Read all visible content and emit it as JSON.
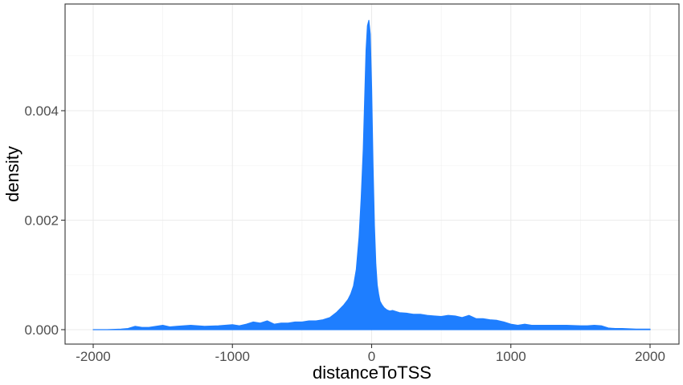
{
  "chart_data": {
    "type": "area",
    "xlabel": "distanceToTSS",
    "ylabel": "density",
    "xlim": [
      -2000,
      2000
    ],
    "ylim": [
      0,
      0.0057
    ],
    "x_ticks": [
      -2000,
      -1000,
      0,
      1000,
      2000
    ],
    "x_tick_labels": [
      "-2000",
      "-1000",
      "0",
      "1000",
      "2000"
    ],
    "y_ticks": [
      0,
      0.002,
      0.004
    ],
    "y_tick_labels": [
      "0.000",
      "0.002",
      "0.004"
    ],
    "grid": true,
    "fill_color": "#1e7eff",
    "series": [
      {
        "x": [
          -2000,
          -1900,
          -1800,
          -1750,
          -1700,
          -1650,
          -1600,
          -1500,
          -1450,
          -1400,
          -1300,
          -1200,
          -1100,
          -1000,
          -950,
          -900,
          -850,
          -800,
          -750,
          -700,
          -650,
          -600,
          -550,
          -500,
          -450,
          -400,
          -350,
          -300,
          -250,
          -200,
          -170,
          -150,
          -130,
          -110,
          -90,
          -75,
          -60,
          -50,
          -40,
          -30,
          -20,
          -10,
          0,
          10,
          20,
          30,
          40,
          50,
          60,
          75,
          90,
          110,
          130,
          150,
          175,
          200,
          250,
          300,
          350,
          400,
          450,
          500,
          550,
          600,
          650,
          700,
          750,
          800,
          850,
          900,
          950,
          1000,
          1050,
          1100,
          1150,
          1200,
          1300,
          1400,
          1500,
          1550,
          1600,
          1650,
          1700,
          1750,
          1800,
          1900,
          2000
        ],
        "y": [
          0.0,
          0.0,
          1e-05,
          2e-05,
          6e-05,
          4e-05,
          4e-05,
          8e-05,
          5e-05,
          6e-05,
          8e-05,
          6e-05,
          7e-05,
          9e-05,
          7e-05,
          0.0001,
          0.00014,
          0.00012,
          0.00016,
          0.0001,
          0.00012,
          0.00012,
          0.00014,
          0.00014,
          0.00016,
          0.00016,
          0.00018,
          0.00022,
          0.00032,
          0.00045,
          0.00055,
          0.00065,
          0.0008,
          0.0011,
          0.0017,
          0.0024,
          0.0033,
          0.0042,
          0.0051,
          0.00555,
          0.00565,
          0.0054,
          0.0044,
          0.003,
          0.0019,
          0.0012,
          0.00082,
          0.00065,
          0.00052,
          0.00045,
          0.0004,
          0.00036,
          0.00034,
          0.00035,
          0.00033,
          0.00031,
          0.0003,
          0.00028,
          0.00028,
          0.00026,
          0.00025,
          0.00024,
          0.00026,
          0.00025,
          0.00022,
          0.00026,
          0.0002,
          0.0002,
          0.00018,
          0.00017,
          0.00014,
          0.0001,
          8e-05,
          0.0001,
          8e-05,
          8e-05,
          8e-05,
          8e-05,
          7e-05,
          7e-05,
          8e-05,
          7e-05,
          3e-05,
          2e-05,
          2e-05,
          1e-05,
          1e-05
        ]
      }
    ]
  }
}
